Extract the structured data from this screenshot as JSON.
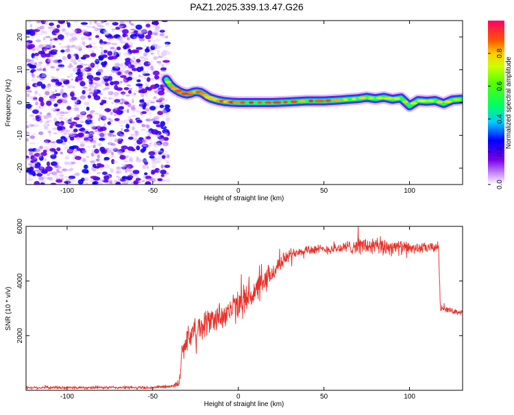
{
  "title": "PAZ1.2025.339.13.47.G26",
  "chart_data": [
    {
      "type": "heatmap",
      "id": "spectrogram",
      "xlabel": "Height of straight line (km)",
      "ylabel": "Frequency (Hz)",
      "xlim": [
        -124,
        131
      ],
      "ylim": [
        -25,
        25
      ],
      "xticks": [
        -100,
        -50,
        0,
        50,
        100
      ],
      "yticks": [
        -20,
        -10,
        0,
        10,
        20
      ],
      "noise_region": {
        "x_range": [
          -124,
          -41
        ],
        "y_range": [
          -25,
          25
        ],
        "max_amplitude": 0.25
      },
      "ridge": {
        "x": [
          -42,
          -40,
          -38,
          -36,
          -34,
          -32,
          -30,
          -28,
          -26,
          -24,
          -22,
          -20,
          -18,
          -16,
          -14,
          -12,
          -10,
          -8,
          -6,
          -4,
          -2,
          0,
          10,
          20,
          30,
          40,
          50,
          60,
          65,
          70,
          75,
          80,
          85,
          90,
          95,
          100,
          105,
          110,
          115,
          120,
          125,
          130
        ],
        "y": [
          7,
          5.5,
          4.5,
          3.8,
          3.2,
          2.8,
          2.6,
          2.8,
          3.2,
          3.3,
          3.1,
          2.5,
          1.8,
          1.3,
          1.0,
          0.7,
          0.5,
          0.3,
          0.2,
          0.1,
          0.05,
          0,
          0,
          0,
          0.2,
          0.5,
          0.5,
          0.8,
          1.0,
          1.2,
          1.6,
          1.2,
          1.6,
          1.0,
          1.4,
          -1.0,
          0.6,
          0.4,
          0.6,
          -0.3,
          0.8,
          1.0
        ],
        "amplitude": [
          0.75,
          0.85,
          0.9,
          0.95,
          0.95,
          0.9,
          0.95,
          0.95,
          0.95,
          0.95,
          0.95,
          0.9,
          0.9,
          0.85,
          0.8,
          0.85,
          0.9,
          0.9,
          0.9,
          0.95,
          0.95,
          0.95,
          0.95,
          0.95,
          0.9,
          0.95,
          0.95,
          0.85,
          0.85,
          0.8,
          0.8,
          0.8,
          0.8,
          0.8,
          0.8,
          0.8,
          0.8,
          0.8,
          0.8,
          0.8,
          0.8,
          0.8
        ]
      }
    },
    {
      "type": "colorbar",
      "id": "colorbar",
      "label": "Normalized spectral amplitude",
      "range": [
        0,
        1
      ],
      "ticks": [
        "0.0",
        "0.2",
        "0.4",
        "0.6",
        "0.8"
      ],
      "tick_values": [
        0,
        0.2,
        0.4,
        0.6,
        0.8
      ]
    },
    {
      "type": "line",
      "id": "snr",
      "xlabel": "Height of straight line (km)",
      "ylabel": "SNR (10 * v/v)",
      "xlim": [
        -124,
        131
      ],
      "ylim": [
        0,
        6000
      ],
      "xticks": [
        -100,
        -50,
        0,
        50,
        100
      ],
      "yticks": [
        2000,
        4000,
        6000
      ],
      "series": [
        {
          "name": "SNR",
          "color": "#e8322a",
          "x": [
            -124,
            -100,
            -75,
            -50,
            -40,
            -36,
            -34,
            -33,
            -30,
            -25,
            -20,
            -15,
            -10,
            -5,
            0,
            5,
            10,
            15,
            20,
            25,
            30,
            35,
            40,
            50,
            60,
            70,
            80,
            90,
            100,
            110,
            117,
            118,
            120,
            125,
            131
          ],
          "y": [
            100,
            100,
            100,
            100,
            150,
            200,
            400,
            1400,
            1900,
            2200,
            2400,
            2600,
            2750,
            2900,
            3100,
            3400,
            3600,
            3900,
            4300,
            4700,
            4950,
            5100,
            5150,
            5150,
            5200,
            5300,
            5250,
            5250,
            5200,
            5200,
            5250,
            3000,
            3000,
            2900,
            2850
          ],
          "noise_amplitude": [
            60,
            60,
            60,
            60,
            60,
            100,
            250,
            400,
            450,
            500,
            550,
            550,
            550,
            600,
            600,
            600,
            550,
            500,
            400,
            300,
            250,
            200,
            200,
            180,
            220,
            320,
            380,
            330,
            220,
            200,
            200,
            120,
            120,
            100,
            100
          ]
        }
      ]
    }
  ]
}
